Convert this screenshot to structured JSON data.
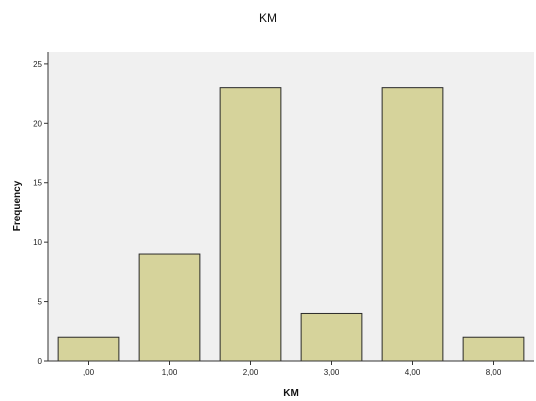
{
  "chart_data": {
    "type": "bar",
    "title": "KM",
    "xlabel": "KM",
    "ylabel": "Frequency",
    "categories": [
      ",00",
      "1,00",
      "2,00",
      "3,00",
      "4,00",
      "8,00"
    ],
    "values": [
      2,
      9,
      23,
      4,
      23,
      2
    ],
    "ylim": [
      0,
      26
    ],
    "yticks": [
      "0",
      "5",
      "10",
      "15",
      "20",
      "25"
    ],
    "grid": false,
    "legend": "none",
    "colors": {
      "bar_fill": "#d6d39b",
      "bar_stroke": "#2a2a2a",
      "plot_background": "#f0f0f0",
      "axis": "#333333"
    }
  }
}
